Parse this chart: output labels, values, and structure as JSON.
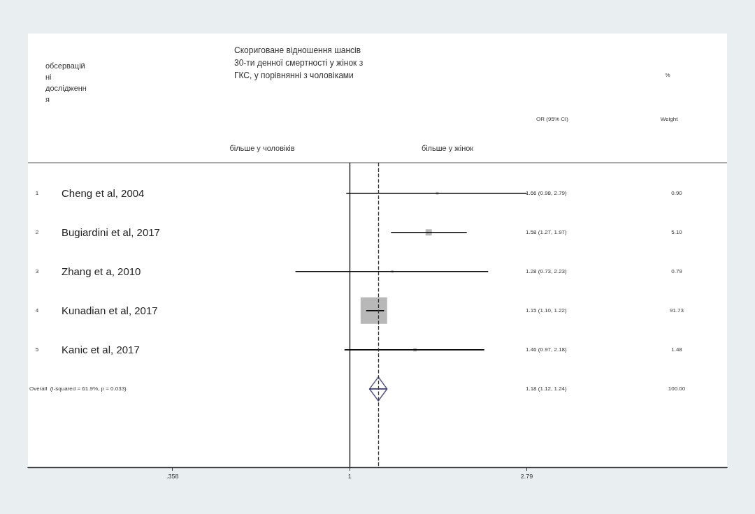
{
  "chart_data": {
    "type": "bubble",
    "orientation": "horizontal",
    "title": "Скориговане відношення шансів 30-ти денної смертності у жінок з ГКС, у порівнянні з чоловіками",
    "categories": [
      "Cheng et al, 2004",
      "Bugiardini et al, 2017",
      "Zhang et a, 2010",
      "Kunadian et al, 2017",
      "Kanic et al, 2017",
      "Overall  (I-squared = 61.9%, p = 0.033)"
    ],
    "series": [
      {
        "marker": "square",
        "color": "#a6a6a6",
        "values": [
          1.66,
          1.58,
          1.28,
          1.15,
          1.46,
          null
        ],
        "errors": [
          [
            0.98,
            2.79
          ],
          [
            1.27,
            1.97
          ],
          [
            0.73,
            2.23
          ],
          [
            1.1,
            1.22
          ],
          [
            0.97,
            2.18
          ],
          null
        ],
        "sizes": [
          0.0098,
          0.0556,
          0.0086,
          1,
          0.0161,
          null
        ]
      },
      {
        "type": "scatter",
        "marker": "diamond",
        "color": "#2b2b6b",
        "values": [
          null,
          null,
          null,
          null,
          null,
          1.18
        ],
        "errors": [
          null,
          null,
          null,
          null,
          null,
          [
            1.12,
            1.24
          ]
        ]
      }
    ],
    "xlim": [
      0.155,
      8.9
    ],
    "xticks": [
      {
        "value": 0.358,
        "label": ".358"
      },
      1,
      2.79
    ],
    "log": "x",
    "grid": false,
    "ref_lines": [
      {
        "axis": "x",
        "value": 1,
        "line_style": "solid",
        "color": "#000000"
      },
      {
        "axis": "x",
        "value": 1.18,
        "line_style": "dashed",
        "color": "#333333"
      }
    ],
    "annotations": [
      "обсерваційні дослідження",
      "OR (95% CI)",
      "%",
      "Weight",
      "більше у чоловіків",
      "більше у жінок",
      "1",
      "2",
      "3",
      "4",
      "5",
      "1.66 (0.98, 2.79)",
      "1.58 (1.27, 1.97)",
      "1.28 (0.73, 2.23)",
      "1.15 (1.10, 1.22)",
      "1.46 (0.97, 2.18)",
      "1.18 (1.12, 1.24)",
      "0.90",
      "5.10",
      "0.79",
      "91.73",
      "1.48",
      "100.00"
    ]
  }
}
